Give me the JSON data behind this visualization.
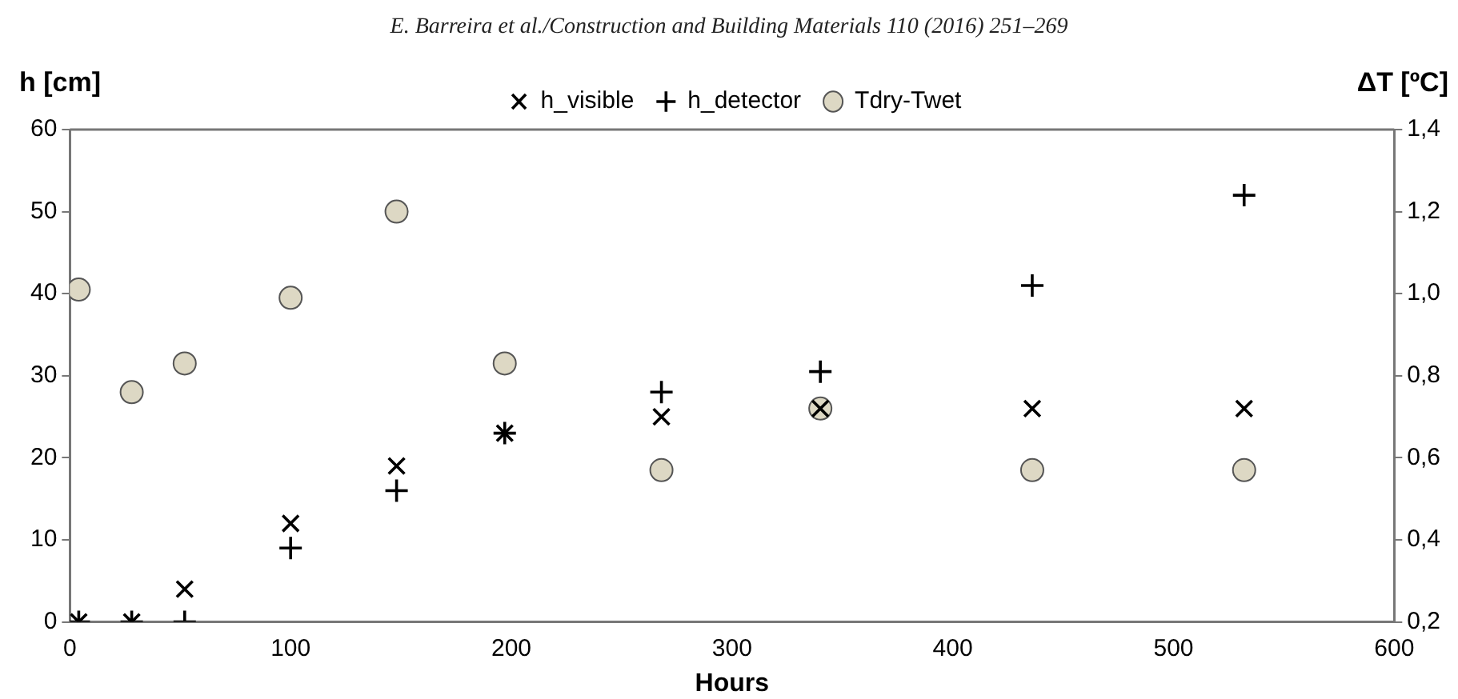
{
  "chart_data": {
    "type": "scatter",
    "xlabel": "Hours",
    "ylabel": "h [cm]",
    "y2label": "ΔT [ºC]",
    "annotations": [
      "E. Barreira et al./Construction and Building Materials 110 (2016) 251–269"
    ],
    "x": [
      4,
      28,
      52,
      100,
      148,
      197,
      268,
      340,
      436,
      532
    ],
    "series": [
      {
        "name": "h_visible",
        "color": "#000000",
        "marker": "x",
        "values": [
          0,
          0,
          4,
          12,
          19,
          23,
          25,
          26,
          26,
          26
        ]
      },
      {
        "name": "h_detector",
        "color": "#000000",
        "marker": "cross",
        "values": [
          0,
          0,
          0,
          9,
          16,
          23,
          28,
          30.5,
          41,
          52
        ]
      },
      {
        "name": "Tdry-Twet",
        "color": "#ddd8c4",
        "marker": "circle",
        "axis": "y2",
        "values": [
          1.01,
          0.76,
          0.83,
          0.99,
          1.2,
          0.83,
          0.57,
          0.72,
          0.57,
          0.57
        ]
      }
    ],
    "xlim": [
      0,
      600
    ],
    "xticks": [
      0,
      100,
      200,
      300,
      400,
      500,
      600
    ],
    "ylim": [
      0,
      60
    ],
    "yticks": [
      0,
      10,
      20,
      30,
      40,
      50,
      60
    ],
    "y2lim": [
      0.2,
      1.4
    ],
    "y2ticks": [
      {
        "value": 0.2,
        "label": "0,2"
      },
      {
        "value": 0.4,
        "label": "0,4"
      },
      {
        "value": 0.6,
        "label": "0,6"
      },
      {
        "value": 0.8,
        "label": "0,8"
      },
      {
        "value": 1.0,
        "label": "1,0"
      },
      {
        "value": 1.2,
        "label": "1,2"
      },
      {
        "value": 1.4,
        "label": "1,4"
      }
    ],
    "grid": false,
    "legend": "top"
  }
}
